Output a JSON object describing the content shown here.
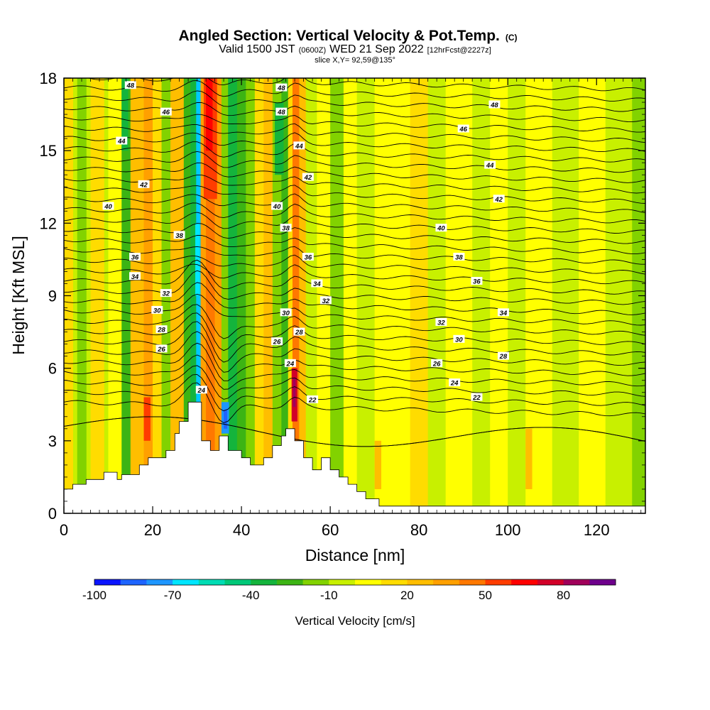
{
  "chart_data": {
    "type": "heatmap",
    "title_main": "Angled Section: Vertical Velocity & Pot.Temp.",
    "title_mark": "(C)",
    "subtitle_a": "Valid 1500 JST",
    "subtitle_b": "(0600Z)",
    "subtitle_c": "WED 21 Sep 2022",
    "subtitle_d": "[12hrFcst@2227z]",
    "slice_label": "slice X,Y= 92,59@135°",
    "xlabel": "Distance [nm]",
    "ylabel": "Height [Kft MSL]",
    "xlim": [
      0,
      131
    ],
    "ylim": [
      0,
      18
    ],
    "x_ticks": [
      0,
      20,
      40,
      60,
      80,
      100,
      120
    ],
    "y_ticks": [
      0,
      3,
      6,
      9,
      12,
      15,
      18
    ],
    "colorbar": {
      "label": "Vertical Velocity [cm/s]",
      "tick_values": [
        -100,
        -70,
        -40,
        -10,
        20,
        50,
        80
      ],
      "min": -100,
      "max": 100,
      "colors": [
        "#0a14ff",
        "#1e64ff",
        "#1e96ff",
        "#00e6ff",
        "#00dcb4",
        "#00c878",
        "#14b43c",
        "#3cb414",
        "#82d200",
        "#c8f000",
        "#ffff00",
        "#ffdc00",
        "#ffbe00",
        "#ffa000",
        "#ff7800",
        "#ff3c00",
        "#ff0000",
        "#d20028",
        "#a0005a",
        "#6e008c"
      ]
    },
    "contour_labels": [
      {
        "text": "48",
        "x": 15,
        "y": 17.7
      },
      {
        "text": "46",
        "x": 23,
        "y": 16.6
      },
      {
        "text": "44",
        "x": 13,
        "y": 15.4
      },
      {
        "text": "42",
        "x": 18,
        "y": 13.6
      },
      {
        "text": "40",
        "x": 10,
        "y": 12.7
      },
      {
        "text": "38",
        "x": 26,
        "y": 11.5
      },
      {
        "text": "36",
        "x": 16,
        "y": 10.6
      },
      {
        "text": "34",
        "x": 16,
        "y": 9.8
      },
      {
        "text": "32",
        "x": 23,
        "y": 9.1
      },
      {
        "text": "30",
        "x": 21,
        "y": 8.4
      },
      {
        "text": "28",
        "x": 22,
        "y": 7.6
      },
      {
        "text": "26",
        "x": 22,
        "y": 6.8
      },
      {
        "text": "24",
        "x": 31,
        "y": 5.1
      },
      {
        "text": "48",
        "x": 49,
        "y": 17.6
      },
      {
        "text": "48",
        "x": 49,
        "y": 16.6
      },
      {
        "text": "44",
        "x": 53,
        "y": 15.2
      },
      {
        "text": "42",
        "x": 55,
        "y": 13.9
      },
      {
        "text": "40",
        "x": 48,
        "y": 12.7
      },
      {
        "text": "38",
        "x": 50,
        "y": 11.8
      },
      {
        "text": "36",
        "x": 55,
        "y": 10.6
      },
      {
        "text": "34",
        "x": 57,
        "y": 9.5
      },
      {
        "text": "32",
        "x": 59,
        "y": 8.8
      },
      {
        "text": "30",
        "x": 50,
        "y": 8.3
      },
      {
        "text": "28",
        "x": 53,
        "y": 7.5
      },
      {
        "text": "26",
        "x": 48,
        "y": 7.1
      },
      {
        "text": "24",
        "x": 51,
        "y": 6.2
      },
      {
        "text": "22",
        "x": 56,
        "y": 4.7
      },
      {
        "text": "48",
        "x": 97,
        "y": 16.9
      },
      {
        "text": "46",
        "x": 90,
        "y": 15.9
      },
      {
        "text": "44",
        "x": 96,
        "y": 14.4
      },
      {
        "text": "42",
        "x": 98,
        "y": 13.0
      },
      {
        "text": "40",
        "x": 85,
        "y": 11.8
      },
      {
        "text": "38",
        "x": 89,
        "y": 10.6
      },
      {
        "text": "36",
        "x": 93,
        "y": 9.6
      },
      {
        "text": "34",
        "x": 99,
        "y": 8.3
      },
      {
        "text": "32",
        "x": 85,
        "y": 7.9
      },
      {
        "text": "30",
        "x": 89,
        "y": 7.2
      },
      {
        "text": "28",
        "x": 99,
        "y": 6.5
      },
      {
        "text": "26",
        "x": 84,
        "y": 6.2
      },
      {
        "text": "24",
        "x": 88,
        "y": 5.4
      },
      {
        "text": "22",
        "x": 93,
        "y": 4.8
      }
    ]
  }
}
